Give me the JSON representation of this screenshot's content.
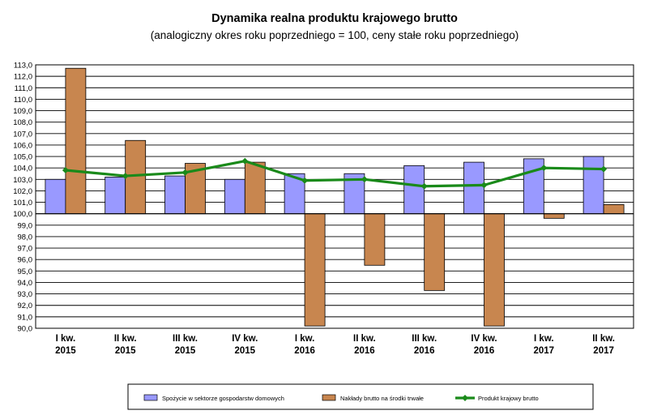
{
  "chart_data": {
    "type": "bar",
    "title": "Dynamika realna produktu krajowego brutto",
    "subtitle": "(analogiczny okres roku poprzedniego = 100, ceny stałe roku poprzedniego)",
    "categories": [
      [
        "I kw.",
        "2015"
      ],
      [
        "II kw.",
        "2015"
      ],
      [
        "III kw.",
        "2015"
      ],
      [
        "IV kw.",
        "2015"
      ],
      [
        "I kw.",
        "2016"
      ],
      [
        "II kw.",
        "2016"
      ],
      [
        "III kw.",
        "2016"
      ],
      [
        "IV kw.",
        "2016"
      ],
      [
        "I kw.",
        "2017"
      ],
      [
        "II kw.",
        "2017"
      ]
    ],
    "baseline": 100,
    "ylim": [
      90,
      113
    ],
    "ytick_step": 1,
    "yticks_labels": [
      "90,0",
      "91,0",
      "92,0",
      "93,0",
      "94,0",
      "95,0",
      "96,0",
      "97,0",
      "98,0",
      "99,0",
      "100,0",
      "101,0",
      "102,0",
      "103,0",
      "104,0",
      "105,0",
      "106,0",
      "107,0",
      "108,0",
      "109,0",
      "110,0",
      "111,0",
      "112,0",
      "113,0"
    ],
    "grid": true,
    "legend_position": "bottom",
    "series": [
      {
        "name": "Spożycie w sektorze gospodarstw domowych",
        "kind": "bar",
        "color": "#9999ff",
        "values": [
          103.0,
          103.2,
          103.3,
          103.0,
          103.5,
          103.5,
          104.2,
          104.5,
          104.8,
          105.0
        ]
      },
      {
        "name": "Nakłady brutto na środki trwałe",
        "kind": "bar",
        "color": "#c8864f",
        "values": [
          112.7,
          106.4,
          104.4,
          104.5,
          90.2,
          95.5,
          93.3,
          90.2,
          99.6,
          100.8
        ]
      },
      {
        "name": "Produkt krajowy brutto",
        "kind": "line",
        "color": "#1a8a1a",
        "values": [
          103.8,
          103.3,
          103.6,
          104.6,
          102.9,
          103.0,
          102.4,
          102.5,
          104.0,
          103.9
        ]
      }
    ]
  }
}
